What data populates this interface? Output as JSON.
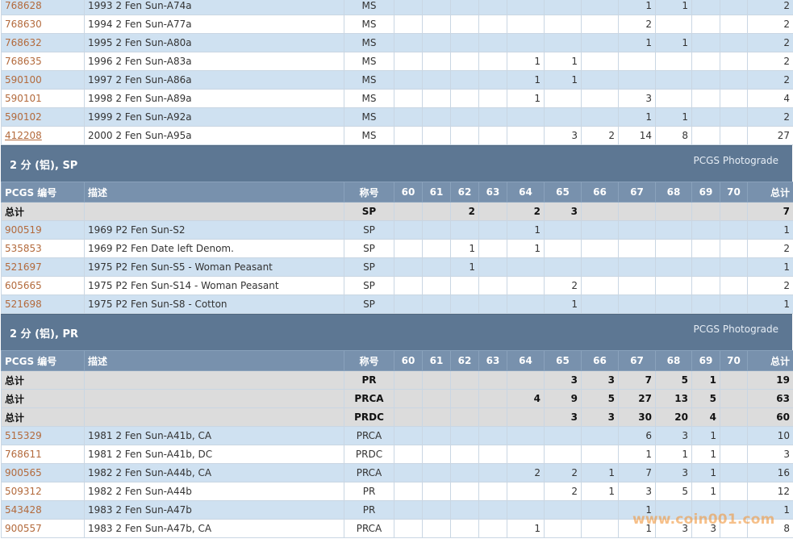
{
  "columns": [
    "PCGS 编号",
    "描述",
    "称号",
    "60",
    "61",
    "62",
    "63",
    "64",
    "65",
    "66",
    "67",
    "68",
    "69",
    "70",
    "总计"
  ],
  "link_color": "#b36a3c",
  "header_color": "#7891ad",
  "section_color": "#5d7793",
  "blocks": [
    {
      "rows": [
        {
          "kind": "odd",
          "code": "768628",
          "desc": "1993 2 Fen Sun-A74a",
          "type": "MS",
          "g": [
            "",
            "",
            "",
            "",
            "",
            "",
            "",
            "1",
            "1",
            "",
            ""
          ],
          "total": "2"
        },
        {
          "kind": "even",
          "code": "768630",
          "desc": "1994 2 Fen Sun-A77a",
          "type": "MS",
          "g": [
            "",
            "",
            "",
            "",
            "",
            "",
            "",
            "2",
            "",
            "",
            ""
          ],
          "total": "2"
        },
        {
          "kind": "odd",
          "code": "768632",
          "desc": "1995 2 Fen Sun-A80a",
          "type": "MS",
          "g": [
            "",
            "",
            "",
            "",
            "",
            "",
            "",
            "1",
            "1",
            "",
            ""
          ],
          "total": "2"
        },
        {
          "kind": "even",
          "code": "768635",
          "desc": "1996 2 Fen Sun-A83a",
          "type": "MS",
          "g": [
            "",
            "",
            "",
            "",
            "1",
            "1",
            "",
            "",
            "",
            "",
            ""
          ],
          "total": "2"
        },
        {
          "kind": "odd",
          "code": "590100",
          "desc": "1997 2 Fen Sun-A86a",
          "type": "MS",
          "g": [
            "",
            "",
            "",
            "",
            "1",
            "1",
            "",
            "",
            "",
            "",
            ""
          ],
          "total": "2"
        },
        {
          "kind": "even",
          "code": "590101",
          "desc": "1998 2 Fen Sun-A89a",
          "type": "MS",
          "g": [
            "",
            "",
            "",
            "",
            "1",
            "",
            "",
            "3",
            "",
            "",
            ""
          ],
          "total": "4"
        },
        {
          "kind": "odd",
          "code": "590102",
          "desc": "1999 2 Fen Sun-A92a",
          "type": "MS",
          "g": [
            "",
            "",
            "",
            "",
            "",
            "",
            "",
            "1",
            "1",
            "",
            ""
          ],
          "total": "2"
        },
        {
          "kind": "even",
          "code": "412208",
          "underline": true,
          "desc": "2000 2 Fen Sun-A95a",
          "type": "MS",
          "g": [
            "",
            "",
            "",
            "",
            "",
            "3",
            "2",
            "14",
            "8",
            "",
            ""
          ],
          "total": "27"
        }
      ]
    },
    {
      "section": {
        "title": "2 分 (铝), SP",
        "link": "PCGS Photograde"
      },
      "rows": [
        {
          "kind": "total",
          "code": "总计",
          "desc": "",
          "type": "SP",
          "g": [
            "",
            "",
            "2",
            "",
            "2",
            "3",
            "",
            "",
            "",
            "",
            ""
          ],
          "total": "7"
        },
        {
          "kind": "odd",
          "code": "900519",
          "desc": "1969 P2 Fen Sun-S2",
          "type": "SP",
          "g": [
            "",
            "",
            "",
            "",
            "1",
            "",
            "",
            "",
            "",
            "",
            ""
          ],
          "total": "1"
        },
        {
          "kind": "even",
          "code": "535853",
          "desc": "1969 P2 Fen Date left Denom.",
          "type": "SP",
          "g": [
            "",
            "",
            "1",
            "",
            "1",
            "",
            "",
            "",
            "",
            "",
            ""
          ],
          "total": "2"
        },
        {
          "kind": "odd",
          "code": "521697",
          "desc": "1975 P2 Fen Sun-S5 - Woman Peasant",
          "type": "SP",
          "g": [
            "",
            "",
            "1",
            "",
            "",
            "",
            "",
            "",
            "",
            "",
            ""
          ],
          "total": "1"
        },
        {
          "kind": "even",
          "code": "605665",
          "desc": "1975 P2 Fen Sun-S14 - Woman Peasant",
          "type": "SP",
          "g": [
            "",
            "",
            "",
            "",
            "",
            "2",
            "",
            "",
            "",
            "",
            ""
          ],
          "total": "2"
        },
        {
          "kind": "odd",
          "code": "521698",
          "desc": "1975 P2 Fen Sun-S8 - Cotton",
          "type": "SP",
          "g": [
            "",
            "",
            "",
            "",
            "",
            "1",
            "",
            "",
            "",
            "",
            ""
          ],
          "total": "1"
        }
      ]
    },
    {
      "section": {
        "title": "2 分 (铝), PR",
        "link": "PCGS Photograde"
      },
      "rows": [
        {
          "kind": "total",
          "code": "总计",
          "desc": "",
          "type": "PR",
          "g": [
            "",
            "",
            "",
            "",
            "",
            "3",
            "3",
            "7",
            "5",
            "1",
            ""
          ],
          "total": "19"
        },
        {
          "kind": "total",
          "code": "总计",
          "desc": "",
          "type": "PRCA",
          "g": [
            "",
            "",
            "",
            "",
            "4",
            "9",
            "5",
            "27",
            "13",
            "5",
            ""
          ],
          "total": "63"
        },
        {
          "kind": "total",
          "code": "总计",
          "desc": "",
          "type": "PRDC",
          "g": [
            "",
            "",
            "",
            "",
            "",
            "3",
            "3",
            "30",
            "20",
            "4",
            ""
          ],
          "total": "60"
        },
        {
          "kind": "odd",
          "code": "515329",
          "desc": "1981 2 Fen Sun-A41b, CA",
          "type": "PRCA",
          "g": [
            "",
            "",
            "",
            "",
            "",
            "",
            "",
            "6",
            "3",
            "1",
            ""
          ],
          "total": "10"
        },
        {
          "kind": "even",
          "code": "768611",
          "desc": "1981 2 Fen Sun-A41b, DC",
          "type": "PRDC",
          "g": [
            "",
            "",
            "",
            "",
            "",
            "",
            "",
            "1",
            "1",
            "1",
            ""
          ],
          "total": "3"
        },
        {
          "kind": "odd",
          "code": "900565",
          "desc": "1982 2 Fen Sun-A44b, CA",
          "type": "PRCA",
          "g": [
            "",
            "",
            "",
            "",
            "2",
            "2",
            "1",
            "7",
            "3",
            "1",
            ""
          ],
          "total": "16"
        },
        {
          "kind": "even",
          "code": "509312",
          "desc": "1982 2 Fen Sun-A44b",
          "type": "PR",
          "g": [
            "",
            "",
            "",
            "",
            "",
            "2",
            "1",
            "3",
            "5",
            "1",
            ""
          ],
          "total": "12"
        },
        {
          "kind": "odd",
          "code": "543428",
          "desc": "1983 2 Fen Sun-A47b",
          "type": "PR",
          "g": [
            "",
            "",
            "",
            "",
            "",
            "",
            "",
            "1",
            "",
            "",
            ""
          ],
          "total": "1"
        },
        {
          "kind": "even",
          "code": "900557",
          "desc": "1983 2 Fen Sun-A47b, CA",
          "type": "PRCA",
          "g": [
            "",
            "",
            "",
            "",
            "1",
            "",
            "",
            "1",
            "3",
            "3",
            ""
          ],
          "total": "8"
        }
      ]
    }
  ],
  "watermark": "www.coin001.com"
}
